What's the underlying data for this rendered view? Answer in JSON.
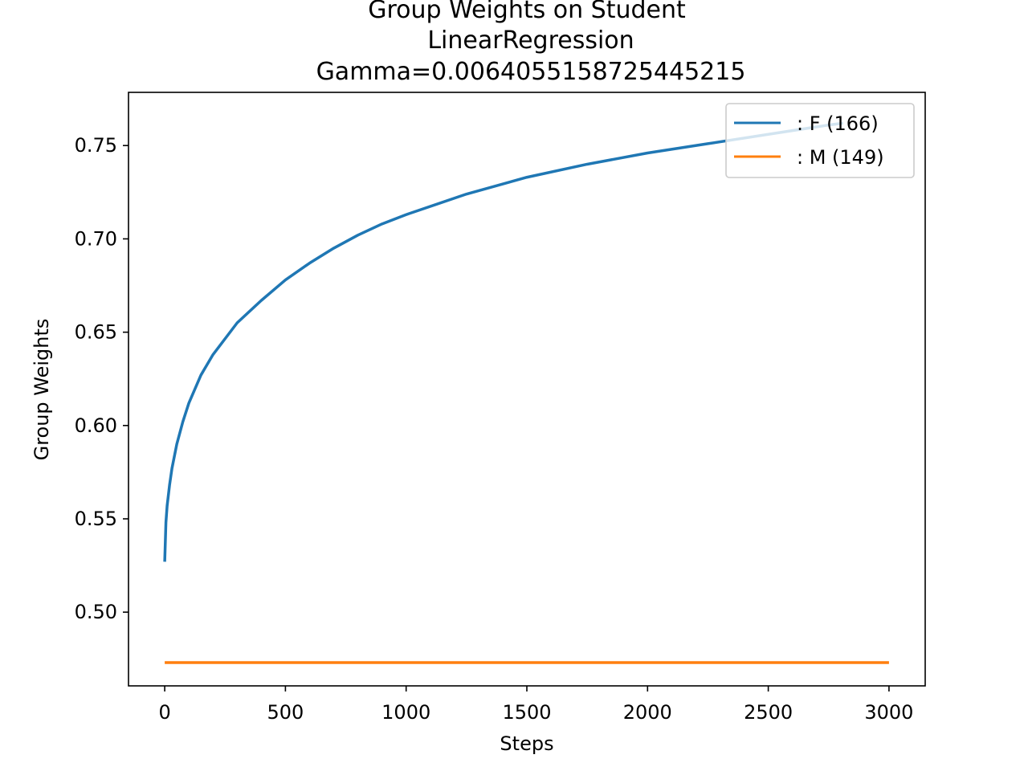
{
  "chart_data": {
    "type": "line",
    "title_lines": [
      "Group Weights on Student",
      "LinearRegression",
      "Gamma=0.006405515872544521­5"
    ],
    "xlabel": "Steps",
    "ylabel": "Group Weights",
    "xlim": [
      -150,
      3150
    ],
    "ylim": [
      0.4605,
      0.7785
    ],
    "xticks": [
      0,
      500,
      1000,
      1500,
      2000,
      2500,
      3000
    ],
    "xtick_labels": [
      "0",
      "500",
      "1000",
      "1500",
      "2000",
      "2500",
      "3000"
    ],
    "yticks": [
      0.5,
      0.55,
      0.6,
      0.65,
      0.7,
      0.75
    ],
    "ytick_labels": [
      "0.50",
      "0.55",
      "0.60",
      "0.65",
      "0.70",
      "0.75"
    ],
    "grid": false,
    "legend_position": "upper right",
    "series": [
      {
        "name": ": F  (166)",
        "color": "#1f77b4",
        "x": [
          0,
          5,
          10,
          20,
          30,
          50,
          75,
          100,
          150,
          200,
          300,
          400,
          500,
          600,
          700,
          800,
          900,
          1000,
          1250,
          1500,
          1750,
          2000,
          2250,
          2500,
          2750,
          2810
        ],
        "y": [
          0.527,
          0.548,
          0.557,
          0.568,
          0.577,
          0.59,
          0.602,
          0.612,
          0.627,
          0.638,
          0.655,
          0.667,
          0.678,
          0.687,
          0.695,
          0.702,
          0.708,
          0.713,
          0.724,
          0.733,
          0.74,
          0.746,
          0.751,
          0.756,
          0.761,
          0.762
        ]
      },
      {
        "name": ": M  (149)",
        "color": "#ff7f0e",
        "x": [
          0,
          3000
        ],
        "y": [
          0.473,
          0.473
        ]
      }
    ]
  }
}
